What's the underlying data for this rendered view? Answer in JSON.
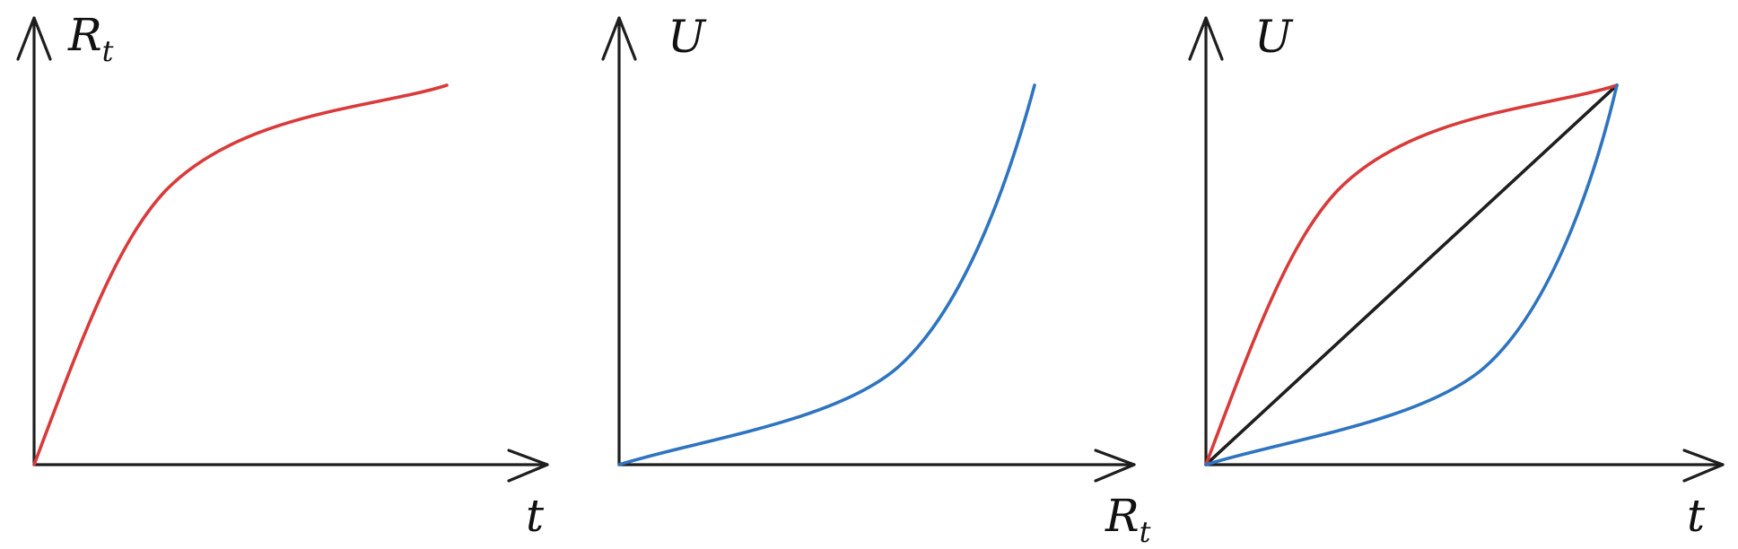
{
  "colors": {
    "axis": "#1e1e1e",
    "red_curve": "#d93a3a",
    "blue_curve": "#2f74c0",
    "diagonal": "#1e1e1e"
  },
  "panels": [
    {
      "id": "panel-1",
      "y_label": {
        "main": "R",
        "sub": "t"
      },
      "x_label": {
        "main": "t",
        "sub": ""
      }
    },
    {
      "id": "panel-2",
      "y_label": {
        "main": "U",
        "sub": ""
      },
      "x_label": {
        "main": "R",
        "sub": "t"
      }
    },
    {
      "id": "panel-3",
      "y_label": {
        "main": "U",
        "sub": ""
      },
      "x_label": {
        "main": "t",
        "sub": ""
      }
    }
  ]
}
